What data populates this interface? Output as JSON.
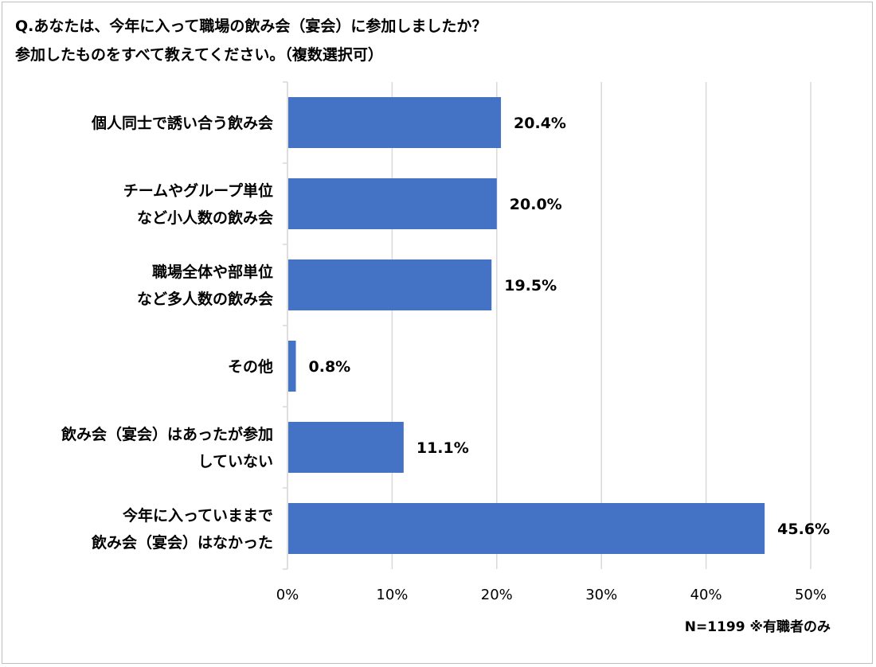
{
  "chart_data": {
    "type": "bar",
    "orientation": "horizontal",
    "title_lines": [
      "Q.あなたは、今年に入って職場の飲み会（宴会）に参加しましたか？",
      "参加したものをすべて教えてください。（複数選択可）"
    ],
    "categories": [
      [
        "個人同士で誘い合う飲み会"
      ],
      [
        "チームやグループ単位",
        "など小人数の飲み会"
      ],
      [
        "職場全体や部単位",
        "など多人数の飲み会"
      ],
      [
        "その他"
      ],
      [
        "飲み会（宴会）はあったが参加",
        "していない"
      ],
      [
        "今年に入っていままで",
        "飲み会（宴会）はなかった"
      ]
    ],
    "values": [
      20.4,
      20.0,
      19.5,
      0.8,
      11.1,
      45.6
    ],
    "value_labels": [
      "20.4%",
      "20.0%",
      "19.5%",
      "0.8%",
      "11.1%",
      "45.6%"
    ],
    "xlim": [
      0,
      50
    ],
    "x_ticks": [
      0,
      10,
      20,
      30,
      40,
      50
    ],
    "x_tick_labels": [
      "0%",
      "10%",
      "20%",
      "30%",
      "40%",
      "50%"
    ],
    "grid": true,
    "bar_color": "#4472C4",
    "grid_color": "#d9d9d9",
    "footnote": "N=1199 ※有職者のみ"
  }
}
